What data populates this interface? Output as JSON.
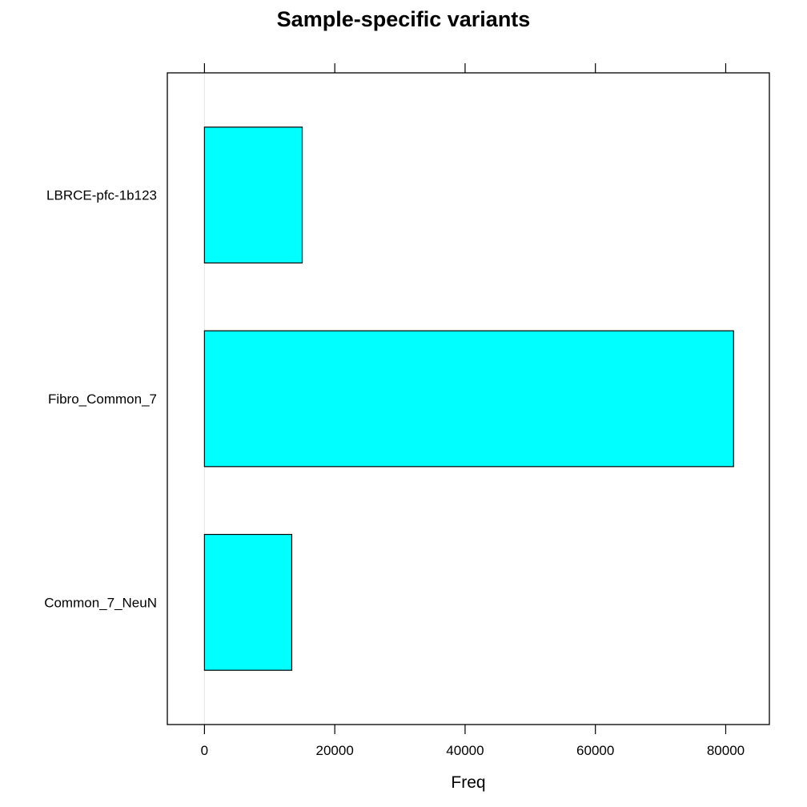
{
  "chart_data": {
    "type": "bar",
    "orientation": "horizontal",
    "title": "Sample-specific variants",
    "xlabel": "Freq",
    "ylabel": "",
    "categories": [
      "Common_7_NeuN",
      "Fibro_Common_7",
      "LBRCE-pfc-1b123"
    ],
    "values": [
      13400,
      81200,
      15000
    ],
    "xlim": [
      -5700,
      86700
    ],
    "ticks": [
      0,
      20000,
      40000,
      60000,
      80000
    ],
    "tick_labels": [
      "0",
      "20000",
      "40000",
      "60000",
      "80000"
    ],
    "bar_color": "#00ffff",
    "bar_stroke": "#000000",
    "reference_line_at": 0,
    "reference_line_color": "#e6e6e6",
    "grid": false,
    "legend": "none"
  }
}
